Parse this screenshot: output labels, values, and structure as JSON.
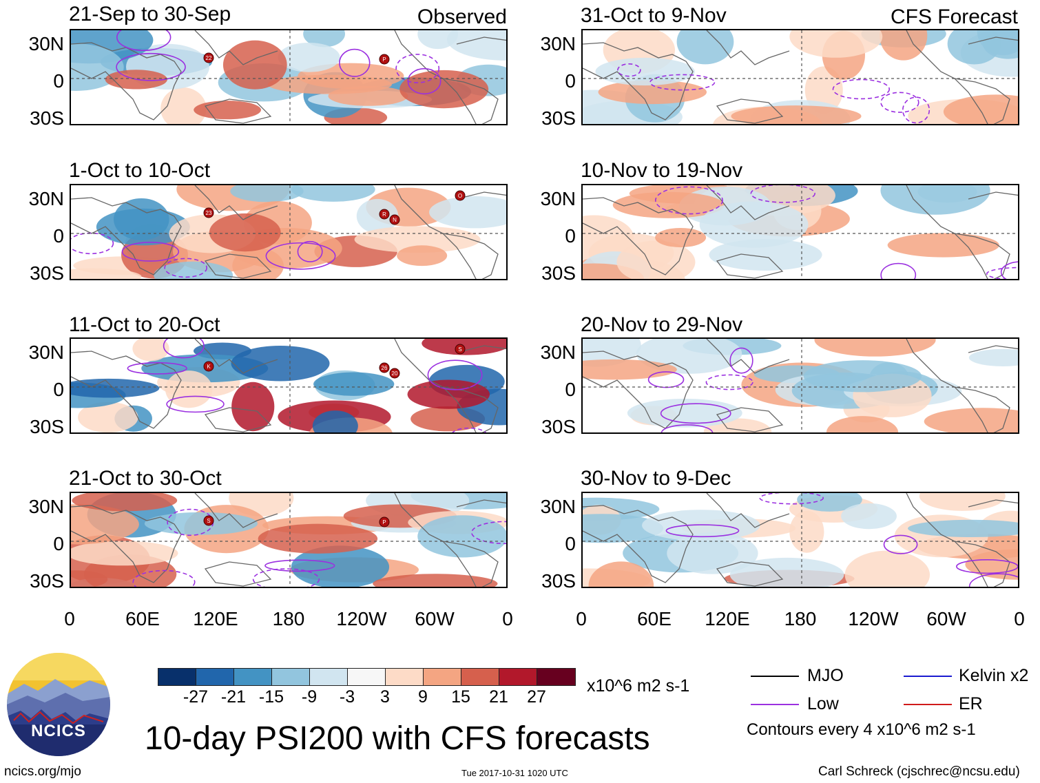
{
  "panels_observed": [
    {
      "title": "21-Sep to 30-Sep",
      "label": "Observed"
    },
    {
      "title": "1-Oct to 10-Oct",
      "label": ""
    },
    {
      "title": "11-Oct to 20-Oct",
      "label": ""
    },
    {
      "title": "21-Oct to 30-Oct",
      "label": ""
    }
  ],
  "panels_forecast": [
    {
      "title": "31-Oct to 9-Nov",
      "label": "CFS Forecast"
    },
    {
      "title": "10-Nov to 19-Nov",
      "label": ""
    },
    {
      "title": "20-Nov to 29-Nov",
      "label": ""
    },
    {
      "title": "30-Nov to 9-Dec",
      "label": ""
    }
  ],
  "lat_labels": [
    "30N",
    "0",
    "30S"
  ],
  "lon_labels": [
    "0",
    "60E",
    "120E",
    "180",
    "120W",
    "60W",
    "0"
  ],
  "colorbar": {
    "colors": [
      "#08306b",
      "#2166ac",
      "#4393c3",
      "#92c5de",
      "#d1e5f0",
      "#f7f7f7",
      "#fddbc7",
      "#f4a582",
      "#d6604d",
      "#b2182b",
      "#67001f"
    ],
    "ticks": [
      "-27",
      "-21",
      "-15",
      "-9",
      "-3",
      "3",
      "9",
      "15",
      "21",
      "27"
    ],
    "units": "x10^6 m2 s-1"
  },
  "legend": {
    "mjo": "MJO",
    "low": "Low",
    "kelvin": "Kelvin x2",
    "er": "ER",
    "mjo_color": "#000000",
    "low_color": "#9b30e0",
    "kelvin_color": "#1a1ad0",
    "er_color": "#d01a1a",
    "contour_note": "Contours every 4 x10^6 m2 s-1"
  },
  "main_title": "10-day PSI200 with CFS forecasts",
  "logo_text": "NCICS",
  "footer": {
    "url": "ncics.org/mjo",
    "timestamp": "Tue 2017-10-31 1020 UTC",
    "author": "Carl Schreck (cjschrec@ncsu.edu)"
  },
  "storm_markers": [
    {
      "panel": 0,
      "labels": [
        "22",
        "P"
      ]
    },
    {
      "panel": 1,
      "labels": [
        "23",
        "R",
        "N",
        "O"
      ]
    },
    {
      "panel": 2,
      "labels": [
        "K",
        "26",
        "20",
        "S"
      ]
    },
    {
      "panel": 3,
      "labels": [
        "S",
        "P"
      ]
    }
  ]
}
